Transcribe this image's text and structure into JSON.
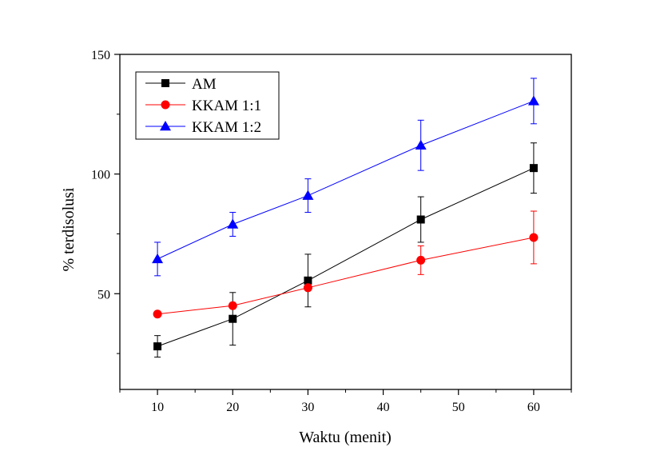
{
  "chart_data": {
    "type": "line",
    "title": "",
    "xlabel": "Waktu (menit)",
    "ylabel": "% terdisolusi",
    "xlim": [
      5,
      65
    ],
    "ylim": [
      10,
      150
    ],
    "x_ticks": [
      10,
      20,
      30,
      40,
      50,
      60
    ],
    "y_ticks": [
      50,
      100,
      150
    ],
    "x_tick_labels": [
      "10",
      "20",
      "30",
      "40",
      "50",
      "60"
    ],
    "y_tick_labels": [
      "50",
      "100",
      "150"
    ],
    "grid": false,
    "legend_position": "top-left",
    "series": [
      {
        "name": "AM",
        "color": "#000000",
        "marker": "square",
        "x": [
          10,
          20,
          30,
          45,
          60
        ],
        "y": [
          28,
          39.5,
          55.5,
          81,
          102.5
        ],
        "err": [
          4.5,
          11,
          11,
          9.5,
          10.5
        ]
      },
      {
        "name": "KKAM 1:1",
        "color": "#ff0000",
        "marker": "circle",
        "x": [
          10,
          20,
          30,
          45,
          60
        ],
        "y": [
          41.5,
          45,
          52.5,
          64,
          73.5
        ],
        "err": [
          0,
          0,
          0,
          6,
          11
        ]
      },
      {
        "name": "KKAM 1:2",
        "color": "#0000ff",
        "marker": "triangle",
        "x": [
          10,
          20,
          30,
          45,
          60
        ],
        "y": [
          64.5,
          79,
          91,
          112,
          130.5
        ],
        "err": [
          7,
          5,
          7,
          10.5,
          9.5
        ]
      }
    ]
  }
}
